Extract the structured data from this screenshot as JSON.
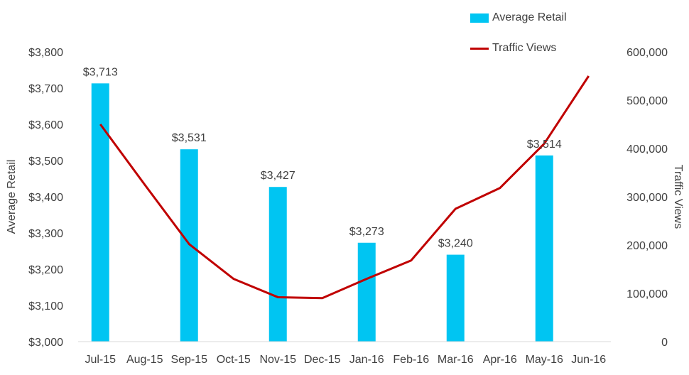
{
  "colors": {
    "bar": "#00C5F2",
    "line": "#C00000",
    "axis_text": "#404040",
    "axis_line": "#D9D9D9"
  },
  "legend": {
    "bar_label": "Average Retail",
    "line_label": "Traffic Views"
  },
  "chart_data": {
    "type": "bar",
    "categories": [
      "Jul-15",
      "Aug-15",
      "Sep-15",
      "Oct-15",
      "Nov-15",
      "Dec-15",
      "Jan-16",
      "Feb-16",
      "Mar-16",
      "Apr-16",
      "May-16",
      "Jun-16"
    ],
    "series": [
      {
        "name": "Average Retail",
        "type": "bar",
        "axis": "left",
        "values": [
          3713,
          null,
          3531,
          null,
          3427,
          null,
          3273,
          null,
          3240,
          null,
          3514,
          null
        ],
        "labels": [
          "$3,713",
          "",
          "$3,531",
          "",
          "$3,427",
          "",
          "$3,273",
          "",
          "$3,240",
          "",
          "$3,514",
          ""
        ]
      },
      {
        "name": "Traffic Views",
        "type": "line",
        "axis": "right",
        "values": [
          450000,
          325000,
          202000,
          130000,
          92000,
          90000,
          130000,
          168000,
          275000,
          318000,
          410000,
          550000
        ]
      }
    ],
    "ylabel": "Average Retail",
    "y2label": "Traffic Views",
    "ylim": [
      3000,
      3800
    ],
    "y2lim": [
      0,
      600000
    ],
    "yticks": [
      "$3,000",
      "$3,100",
      "$3,200",
      "$3,300",
      "$3,400",
      "$3,500",
      "$3,600",
      "$3,700",
      "$3,800"
    ],
    "y2ticks": [
      "0",
      "100,000",
      "200,000",
      "300,000",
      "400,000",
      "500,000",
      "600,000"
    ],
    "grid": false,
    "legend_position": "top-right"
  }
}
